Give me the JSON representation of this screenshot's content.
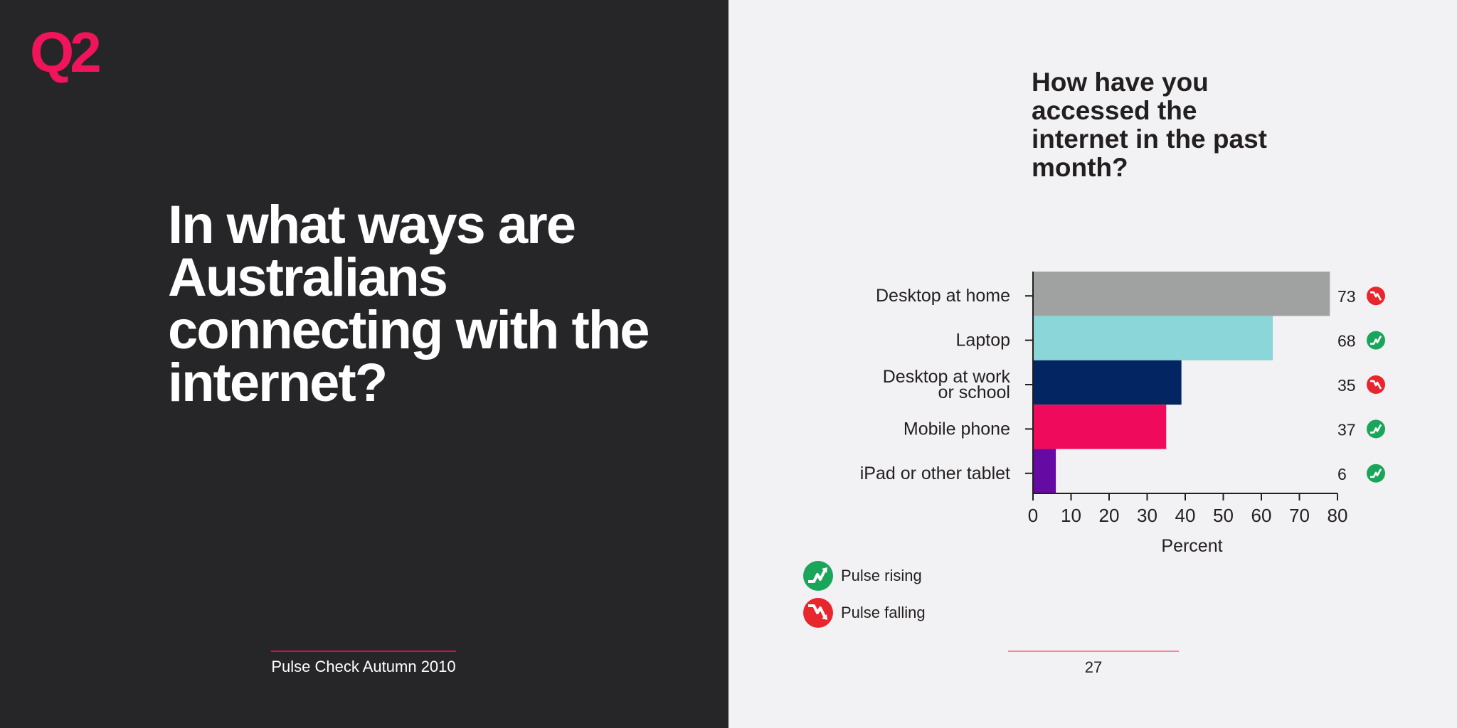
{
  "left_panel": {
    "badge": "Q2",
    "headline": "In what ways are Australians connecting with the internet?",
    "footer": "Pulse Check Autumn 2010"
  },
  "right_panel": {
    "page_number": "27"
  },
  "colors": {
    "accent_pink": "#f0145a",
    "dark_bg": "#262528",
    "light_bg": "#f2f1f3",
    "rising_green": "#1aa65a",
    "falling_red": "#e8262e"
  },
  "chart_data": {
    "type": "bar",
    "orientation": "horizontal",
    "title": "How have you accessed the internet in the past month?",
    "xlabel": "Percent",
    "ylabel": "",
    "xlim": [
      0,
      80
    ],
    "x_ticks": [
      0,
      10,
      20,
      30,
      40,
      50,
      60,
      70,
      80
    ],
    "categories": [
      [
        "Desktop at home"
      ],
      [
        "Laptop"
      ],
      [
        "Desktop at work",
        "or school"
      ],
      [
        "Mobile phone"
      ],
      [
        "iPad or other tablet"
      ]
    ],
    "values": [
      78,
      63,
      39,
      35,
      6
    ],
    "data_labels": [
      73,
      68,
      35,
      37,
      6
    ],
    "bar_colors": [
      "#a0a2a2",
      "#8ad6d9",
      "#032561",
      "#f00a5c",
      "#650aa3"
    ],
    "trend": [
      "falling",
      "rising",
      "falling",
      "rising",
      "rising"
    ],
    "legend": [
      {
        "key": "rising",
        "label": "Pulse rising"
      },
      {
        "key": "falling",
        "label": "Pulse falling"
      }
    ],
    "grid": false
  }
}
